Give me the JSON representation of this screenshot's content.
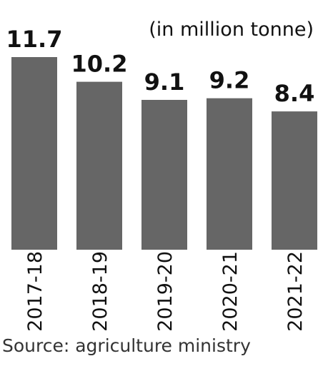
{
  "chart_data": {
    "type": "bar",
    "unit_label": "(in million tonne)",
    "categories": [
      "2017-18",
      "2018-19",
      "2019-20",
      "2020-21",
      "2021-22"
    ],
    "values": [
      11.7,
      10.2,
      9.1,
      9.2,
      8.4
    ],
    "value_labels": [
      "11.7",
      "10.2",
      "9.1",
      "9.2",
      "8.4"
    ],
    "source": "Source: agriculture ministry",
    "bar_color": "#666666",
    "ylim": [
      0,
      11.7
    ],
    "grid": false,
    "legend": "none"
  }
}
